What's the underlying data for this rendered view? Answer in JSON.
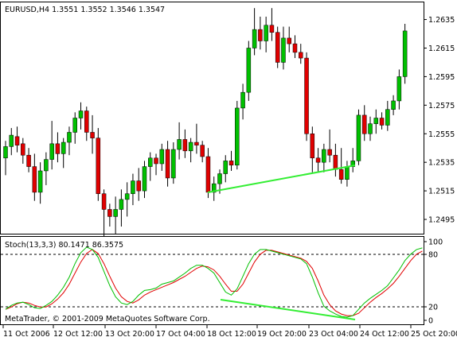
{
  "price_panel": {
    "header": "EURUSD,H4  1.3551 1.3552 1.3546 1.3547",
    "y_ticks": [
      "1.2635",
      "1.2615",
      "1.2595",
      "1.2575",
      "1.2555",
      "1.2535",
      "1.2515",
      "1.2495"
    ]
  },
  "stoch_panel": {
    "header": "Stoch(13,3,3) 80.1471 86.3575",
    "y_ticks": [
      "100",
      "80",
      "20",
      "0"
    ],
    "copyright": "MetaTrader, © 2001-2009 MetaQuotes Software Corp."
  },
  "x_axis": {
    "labels": [
      "11 Oct 2006",
      "12 Oct 12:00",
      "13 Oct 20:00",
      "17 Oct 04:00",
      "18 Oct 12:00",
      "19 Oct 20:00",
      "23 Oct 04:00",
      "24 Oct 12:00",
      "25 Oct 20:00"
    ]
  },
  "colors": {
    "bull": "#00c000",
    "bear": "#e00000",
    "divergence_line": "#33ee33",
    "stoch_main": "#00c000",
    "stoch_signal": "#e00000"
  },
  "chart_data": [
    {
      "type": "candlestick",
      "symbol": "EURUSD",
      "timeframe": "H4",
      "ylim": [
        1.2485,
        1.2647
      ],
      "ohlc": [
        [
          1.2538,
          1.255,
          1.2526,
          1.2546
        ],
        [
          1.2546,
          1.2559,
          1.254,
          1.2554
        ],
        [
          1.2553,
          1.256,
          1.2542,
          1.2547
        ],
        [
          1.2548,
          1.2552,
          1.2534,
          1.254
        ],
        [
          1.254,
          1.2545,
          1.2528,
          1.2532
        ],
        [
          1.2532,
          1.2541,
          1.2508,
          1.2514
        ],
        [
          1.2514,
          1.2535,
          1.2506,
          1.2529
        ],
        [
          1.2529,
          1.2542,
          1.2519,
          1.2537
        ],
        [
          1.2537,
          1.2564,
          1.253,
          1.2548
        ],
        [
          1.2548,
          1.2556,
          1.2535,
          1.2541
        ],
        [
          1.2541,
          1.2552,
          1.2531,
          1.2549
        ],
        [
          1.2549,
          1.256,
          1.254,
          1.2556
        ],
        [
          1.2556,
          1.257,
          1.2548,
          1.2566
        ],
        [
          1.2566,
          1.2577,
          1.2558,
          1.2571
        ],
        [
          1.2571,
          1.2574,
          1.255,
          1.2556
        ],
        [
          1.2556,
          1.2568,
          1.2541,
          1.2552
        ],
        [
          1.2552,
          1.2559,
          1.2508,
          1.2513
        ],
        [
          1.2513,
          1.2516,
          1.2479,
          1.2502
        ],
        [
          1.2502,
          1.2506,
          1.249,
          1.2497
        ],
        [
          1.2497,
          1.2511,
          1.2485,
          1.2502
        ],
        [
          1.2502,
          1.2516,
          1.249,
          1.2509
        ],
        [
          1.2509,
          1.2521,
          1.2497,
          1.2513
        ],
        [
          1.2513,
          1.2527,
          1.2505,
          1.2522
        ],
        [
          1.2522,
          1.2531,
          1.2508,
          1.2515
        ],
        [
          1.2515,
          1.2536,
          1.251,
          1.2532
        ],
        [
          1.2532,
          1.2542,
          1.2522,
          1.2538
        ],
        [
          1.2538,
          1.2541,
          1.2526,
          1.2534
        ],
        [
          1.2534,
          1.2548,
          1.2529,
          1.2544
        ],
        [
          1.2544,
          1.255,
          1.2518,
          1.2524
        ],
        [
          1.2524,
          1.2549,
          1.252,
          1.2544
        ],
        [
          1.2544,
          1.2563,
          1.2537,
          1.2551
        ],
        [
          1.2551,
          1.2558,
          1.2538,
          1.2543
        ],
        [
          1.2543,
          1.2552,
          1.2535,
          1.2549
        ],
        [
          1.2549,
          1.2562,
          1.2541,
          1.2547
        ],
        [
          1.2547,
          1.255,
          1.2535,
          1.2539
        ],
        [
          1.2539,
          1.2545,
          1.251,
          1.2514
        ],
        [
          1.2514,
          1.2525,
          1.2508,
          1.252
        ],
        [
          1.252,
          1.253,
          1.2513,
          1.2527
        ],
        [
          1.2527,
          1.254,
          1.2521,
          1.2536
        ],
        [
          1.2536,
          1.2543,
          1.2529,
          1.2533
        ],
        [
          1.2533,
          1.2578,
          1.253,
          1.2573
        ],
        [
          1.2573,
          1.259,
          1.2565,
          1.2584
        ],
        [
          1.2584,
          1.262,
          1.2578,
          1.2615
        ],
        [
          1.2615,
          1.2643,
          1.261,
          1.2628
        ],
        [
          1.2628,
          1.2637,
          1.2614,
          1.262
        ],
        [
          1.262,
          1.2637,
          1.2612,
          1.2631
        ],
        [
          1.2631,
          1.2643,
          1.262,
          1.2626
        ],
        [
          1.2626,
          1.263,
          1.2601,
          1.2605
        ],
        [
          1.2605,
          1.263,
          1.26,
          1.2622
        ],
        [
          1.2622,
          1.263,
          1.2612,
          1.2618
        ],
        [
          1.2618,
          1.2624,
          1.2608,
          1.2612
        ],
        [
          1.2612,
          1.2618,
          1.2604,
          1.2608
        ],
        [
          1.2608,
          1.2612,
          1.255,
          1.2555
        ],
        [
          1.2555,
          1.256,
          1.2528,
          1.2538
        ],
        [
          1.2538,
          1.2545,
          1.2528,
          1.2535
        ],
        [
          1.2535,
          1.2548,
          1.2528,
          1.2544
        ],
        [
          1.2544,
          1.2558,
          1.2535,
          1.254
        ],
        [
          1.254,
          1.2548,
          1.2525,
          1.253
        ],
        [
          1.253,
          1.2545,
          1.252,
          1.2523
        ],
        [
          1.2523,
          1.2536,
          1.2518,
          1.2532
        ],
        [
          1.2532,
          1.2545,
          1.2528,
          1.2536
        ],
        [
          1.2536,
          1.2572,
          1.2533,
          1.2568
        ],
        [
          1.2568,
          1.2575,
          1.255,
          1.2555
        ],
        [
          1.2555,
          1.2567,
          1.255,
          1.2562
        ],
        [
          1.2562,
          1.2572,
          1.2555,
          1.2566
        ],
        [
          1.2566,
          1.257,
          1.2558,
          1.2561
        ],
        [
          1.2561,
          1.2578,
          1.2557,
          1.2572
        ],
        [
          1.2572,
          1.2582,
          1.2568,
          1.2578
        ],
        [
          1.2578,
          1.26,
          1.2572,
          1.2595
        ],
        [
          1.2595,
          1.2632,
          1.259,
          1.2627
        ]
      ]
    },
    {
      "type": "line",
      "title": "Stoch(13,3,3) 80.1471 86.3575",
      "ylim": [
        0,
        100
      ],
      "levels": [
        80,
        20
      ],
      "series": [
        {
          "name": "main",
          "values": [
            14,
            19,
            22,
            23,
            20,
            16,
            15,
            19,
            24,
            32,
            42,
            55,
            72,
            86,
            93,
            90,
            80,
            62,
            44,
            30,
            22,
            20,
            24,
            32,
            38,
            39,
            41,
            46,
            48,
            50,
            55,
            60,
            66,
            70,
            70,
            66,
            60,
            48,
            36,
            32,
            40,
            56,
            72,
            84,
            90,
            90,
            88,
            86,
            84,
            82,
            80,
            78,
            72,
            55,
            35,
            18,
            12,
            8,
            5,
            4,
            6,
            14,
            22,
            28,
            33,
            38,
            44,
            54,
            64,
            76,
            84,
            90,
            92
          ]
        },
        {
          "name": "signal",
          "values": [
            14,
            17,
            21,
            23,
            22,
            19,
            17,
            17,
            21,
            27,
            35,
            46,
            60,
            74,
            85,
            90,
            85,
            72,
            56,
            41,
            30,
            24,
            22,
            26,
            32,
            36,
            39,
            42,
            45,
            48,
            52,
            56,
            61,
            66,
            69,
            68,
            64,
            56,
            46,
            37,
            37,
            46,
            60,
            74,
            84,
            89,
            89,
            87,
            85,
            83,
            81,
            79,
            75,
            66,
            50,
            32,
            20,
            12,
            8,
            6,
            6,
            9,
            16,
            23,
            29,
            34,
            40,
            47,
            56,
            66,
            76,
            84,
            88
          ]
        }
      ]
    }
  ]
}
